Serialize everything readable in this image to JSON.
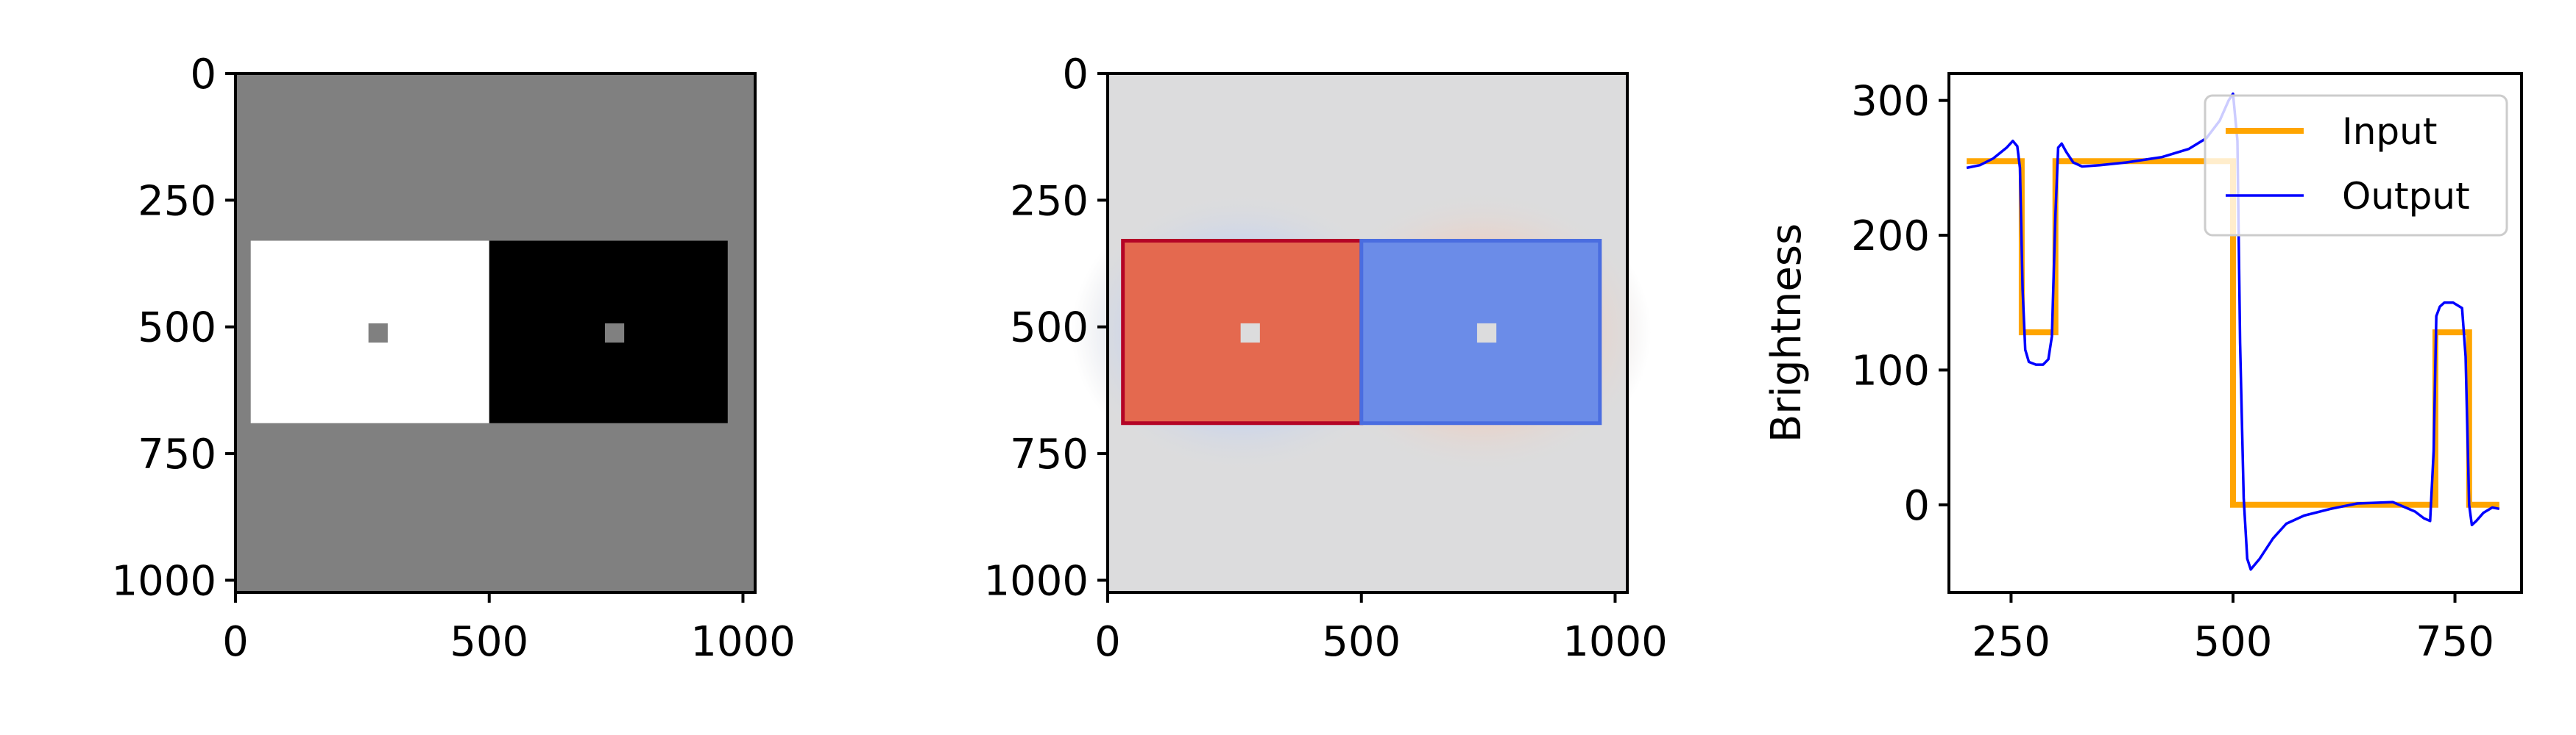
{
  "chart_data": [
    {
      "type": "heatmap",
      "title": "",
      "colormap": "gray",
      "background_value": 128,
      "rectangles": [
        {
          "name": "white-square",
          "x0": 30,
          "x1": 500,
          "y0": 330,
          "y1": 690,
          "value": 255
        },
        {
          "name": "black-square",
          "x0": 500,
          "x1": 970,
          "y0": 330,
          "y1": 690,
          "value": 0
        },
        {
          "name": "left-center-patch",
          "x0": 262,
          "x1": 300,
          "y0": 493,
          "y1": 531,
          "value": 128
        },
        {
          "name": "right-center-patch",
          "x0": 728,
          "x1": 766,
          "y0": 493,
          "y1": 531,
          "value": 128
        }
      ],
      "xlim": [
        0,
        1024
      ],
      "ylim": [
        1024,
        0
      ],
      "xticks": [
        0,
        500,
        1000
      ],
      "yticks": [
        0,
        250,
        500,
        750,
        1000
      ],
      "xtick_labels": [
        "0",
        "500",
        "1000"
      ],
      "ytick_labels": [
        "0",
        "250",
        "500",
        "750",
        "1000"
      ]
    },
    {
      "type": "heatmap",
      "title": "",
      "colormap": "coolwarm",
      "background_color": "#dcdcdd",
      "rectangles": [
        {
          "name": "red-square",
          "x0": 30,
          "x1": 500,
          "y0": 330,
          "y1": 690,
          "color": "#e4694f",
          "edge_color": "#b40426"
        },
        {
          "name": "blue-square",
          "x0": 500,
          "x1": 970,
          "y0": 330,
          "y1": 690,
          "color": "#6b8ce8",
          "edge_color": "#4a6de0"
        },
        {
          "name": "left-center-patch",
          "x0": 262,
          "x1": 300,
          "y0": 493,
          "y1": 531,
          "color": "#dcdcdd"
        },
        {
          "name": "right-center-patch",
          "x0": 728,
          "x1": 766,
          "y0": 493,
          "y1": 531,
          "color": "#dcdcdd"
        }
      ],
      "xlim": [
        0,
        1024
      ],
      "ylim": [
        1024,
        0
      ],
      "xticks": [
        0,
        500,
        1000
      ],
      "yticks": [
        0,
        250,
        500,
        750,
        1000
      ],
      "xtick_labels": [
        "0",
        "500",
        "1000"
      ],
      "ytick_labels": [
        "0",
        "250",
        "500",
        "750",
        "1000"
      ]
    },
    {
      "type": "line",
      "title": "",
      "xlabel": "",
      "ylabel": "Brightness",
      "xlim": [
        180,
        825
      ],
      "ylim": [
        -65,
        320
      ],
      "xticks": [
        250,
        500,
        750
      ],
      "yticks": [
        0,
        100,
        200,
        300
      ],
      "xtick_labels": [
        "250",
        "500",
        "750"
      ],
      "ytick_labels": [
        "0",
        "100",
        "200",
        "300"
      ],
      "legend": "top-right",
      "series": [
        {
          "name": "Input",
          "color": "#ffa500",
          "x": [
            200,
            262,
            262,
            300,
            300,
            500,
            500,
            728,
            728,
            766,
            766,
            800
          ],
          "y": [
            255,
            255,
            128,
            128,
            255,
            255,
            0,
            0,
            128,
            128,
            0,
            0
          ]
        },
        {
          "name": "Output",
          "color": "#0000ff",
          "x": [
            200,
            215,
            230,
            245,
            252,
            257,
            260,
            263,
            266,
            270,
            278,
            286,
            292,
            296,
            300,
            303,
            307,
            312,
            320,
            330,
            350,
            380,
            420,
            450,
            470,
            485,
            495,
            500,
            505,
            508,
            512,
            516,
            520,
            530,
            545,
            560,
            580,
            610,
            640,
            680,
            705,
            715,
            722,
            726,
            729,
            733,
            738,
            748,
            758,
            762,
            766,
            769,
            774,
            782,
            792,
            800
          ],
          "y": [
            250,
            252,
            257,
            265,
            270,
            266,
            250,
            160,
            115,
            106,
            104,
            104,
            108,
            125,
            215,
            265,
            268,
            262,
            254,
            251,
            252,
            254,
            258,
            264,
            272,
            285,
            300,
            305,
            270,
            120,
            5,
            -40,
            -48,
            -40,
            -25,
            -14,
            -8,
            -3,
            1,
            2,
            -5,
            -10,
            -12,
            40,
            140,
            147,
            150,
            150,
            146,
            110,
            0,
            -15,
            -12,
            -6,
            -2,
            -3
          ]
        }
      ]
    }
  ]
}
